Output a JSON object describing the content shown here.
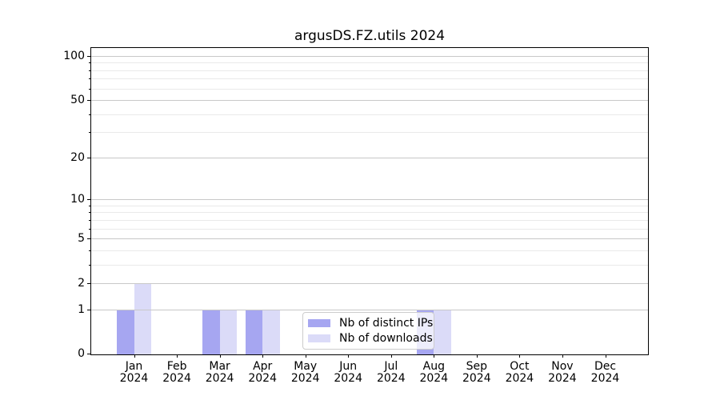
{
  "chart_data": {
    "type": "bar",
    "title": "argusDS.FZ.utils 2024",
    "categories": [
      "Jan",
      "Feb",
      "Mar",
      "Apr",
      "May",
      "Jun",
      "Jul",
      "Aug",
      "Sep",
      "Oct",
      "Nov",
      "Dec"
    ],
    "year_label": "2024",
    "series": [
      {
        "name": "Nb of distinct IPs",
        "color": "#a6a6f1",
        "values": [
          1,
          0,
          1,
          1,
          0,
          0,
          0,
          1,
          0,
          0,
          0,
          0
        ]
      },
      {
        "name": "Nb of downloads",
        "color": "#dbdbf8",
        "values": [
          2,
          0,
          1,
          1,
          0,
          0,
          0,
          1,
          0,
          0,
          0,
          0
        ]
      }
    ],
    "yscale": "log1p",
    "ylim": [
      0,
      113
    ],
    "y_major_ticks": [
      0,
      1,
      2,
      5,
      10,
      20,
      50,
      100
    ],
    "y_minor_ticks": [
      3,
      4,
      6,
      7,
      8,
      9,
      30,
      40,
      60,
      70,
      80,
      90
    ],
    "grid": {
      "axis": "y",
      "major_color": "#c8c8c8",
      "minor_color": "#e9e9e9"
    },
    "legend": {
      "position": "lower center",
      "frame_color": "#cccccc"
    },
    "axes": {
      "spine_color": "#000000",
      "tick_color": "#000000",
      "text_color": "#000000"
    }
  }
}
